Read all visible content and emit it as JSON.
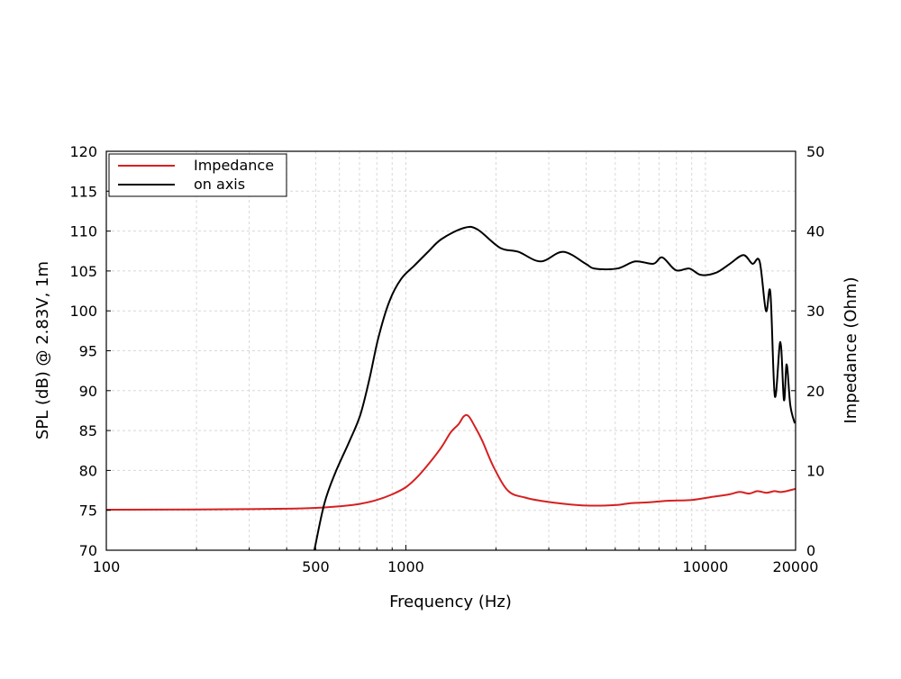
{
  "chart_data": {
    "type": "line",
    "title": "",
    "xlabel": "Frequency (Hz)",
    "ylabel": "SPL (dB) @ 2.83V, 1m",
    "y2label": "Impedance (Ohm)",
    "xscale": "log",
    "xlim": [
      100,
      20000
    ],
    "ylim": [
      70,
      120
    ],
    "y2lim": [
      0,
      50
    ],
    "xticks": [
      100,
      500,
      1000,
      10000,
      20000
    ],
    "xtick_labels": [
      "100",
      "500",
      "1000",
      "10000",
      "20000"
    ],
    "yticks": [
      70,
      75,
      80,
      85,
      90,
      95,
      100,
      105,
      110,
      115,
      120
    ],
    "ytick_labels": [
      "70",
      "75",
      "80",
      "85",
      "90",
      "95",
      "100",
      "105",
      "110",
      "115",
      "120"
    ],
    "y2ticks": [
      0,
      10,
      20,
      30,
      40,
      50
    ],
    "y2tick_labels": [
      "0",
      "10",
      "20",
      "30",
      "40",
      "50"
    ],
    "grid": true,
    "legend_position": "top-left",
    "series": [
      {
        "name": "Impedance",
        "axis": "right",
        "color": "#d62020",
        "x": [
          100,
          200,
          300,
          400,
          500,
          600,
          700,
          800,
          900,
          1000,
          1100,
          1226,
          1320,
          1413,
          1500,
          1563,
          1620,
          1700,
          1800,
          1970,
          2200,
          2500,
          2819,
          3400,
          3983,
          5000,
          5640,
          6500,
          7450,
          9000,
          10600,
          12000,
          13000,
          14000,
          14900,
          16000,
          17000,
          18000,
          20000
        ],
        "y": [
          5.08,
          5.1,
          5.15,
          5.2,
          5.3,
          5.5,
          5.8,
          6.3,
          7.0,
          7.9,
          9.3,
          11.4,
          13.0,
          14.8,
          15.8,
          16.8,
          16.8,
          15.5,
          13.7,
          10.3,
          7.4,
          6.6,
          6.2,
          5.8,
          5.6,
          5.65,
          5.9,
          6.0,
          6.2,
          6.3,
          6.7,
          7.0,
          7.3,
          7.1,
          7.4,
          7.2,
          7.4,
          7.3,
          7.7
        ]
      },
      {
        "name": "on axis",
        "axis": "left",
        "color": "#000000",
        "x": [
          495,
          534,
          581,
          649,
          705,
          757,
          809,
          881,
          964,
          1069,
          1186,
          1315,
          1563,
          1734,
          2064,
          2372,
          2819,
          3352,
          3983,
          4272,
          5077,
          5833,
          6699,
          7180,
          7962,
          8834,
          9670,
          10880,
          12070,
          13390,
          14350,
          15170,
          15920,
          16480,
          17060,
          17790,
          18290,
          18680,
          19200,
          19870
        ],
        "y": [
          70,
          75.8,
          79.7,
          83.7,
          87,
          91.6,
          96.6,
          101.2,
          104,
          105.7,
          107.4,
          109,
          110.4,
          110.2,
          107.9,
          107.4,
          106.2,
          107.4,
          105.9,
          105.3,
          105.3,
          106.2,
          105.9,
          106.7,
          105.1,
          105.3,
          104.5,
          104.8,
          105.9,
          107,
          105.9,
          106.2,
          100,
          102.3,
          89.3,
          96.1,
          88.8,
          93.3,
          88.2,
          85.9
        ]
      }
    ]
  }
}
